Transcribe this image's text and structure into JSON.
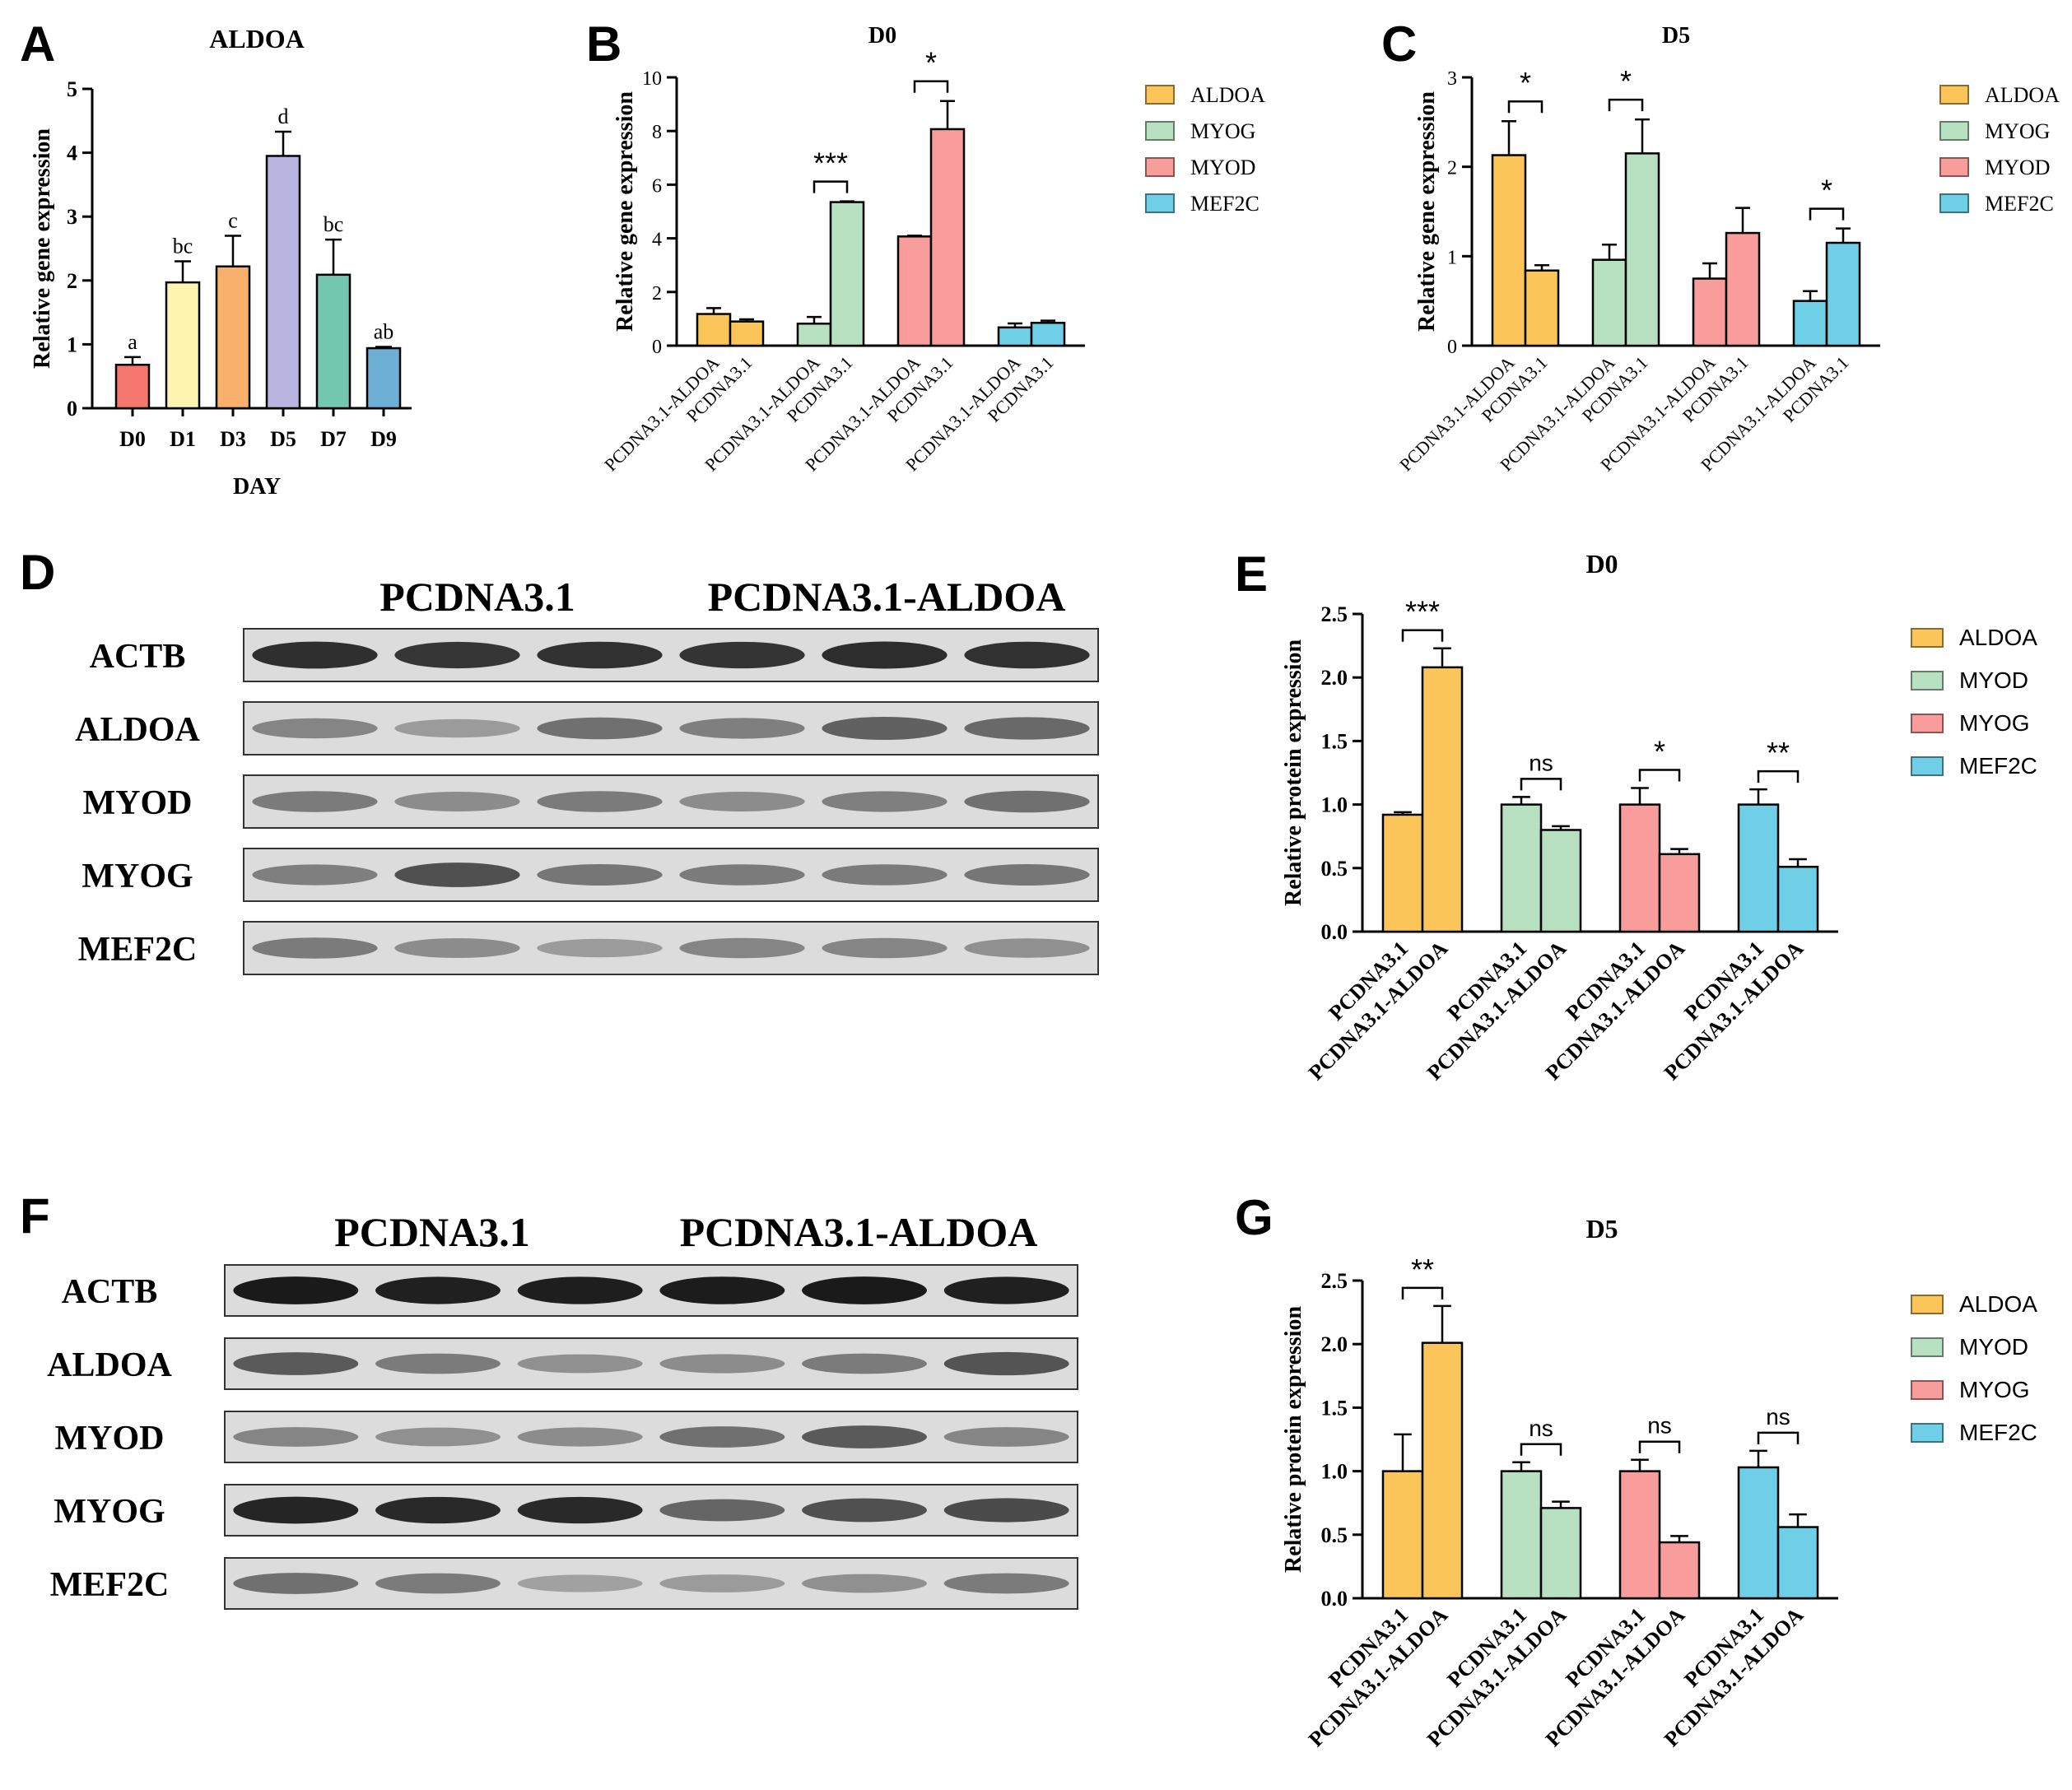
{
  "panels": {
    "A": {
      "letter": "A",
      "chart_data": {
        "type": "bar",
        "title": "ALDOA",
        "xlabel": "DAY",
        "ylabel": "Relative gene expression",
        "ylim": [
          0,
          5
        ],
        "yticks": [
          "0",
          "1",
          "2",
          "3",
          "4",
          "5"
        ],
        "categories": [
          "D0",
          "D1",
          "D3",
          "D5",
          "D7",
          "D9"
        ],
        "values": [
          0.68,
          1.97,
          2.22,
          3.95,
          2.09,
          0.94
        ],
        "errors": [
          0.12,
          0.33,
          0.48,
          0.38,
          0.55,
          0.02
        ],
        "letters": [
          "a",
          "bc",
          "c",
          "d",
          "bc",
          "ab"
        ],
        "colors": [
          "#f4766d",
          "#fdf5b0",
          "#f9b06a",
          "#b8b6e0",
          "#74c7af",
          "#6caed4"
        ],
        "grid": false
      }
    },
    "B": {
      "letter": "B",
      "chart_data": {
        "type": "bar",
        "title": "D0",
        "xlabel": "",
        "ylabel": "Relative gene expression",
        "ylim": [
          0,
          10
        ],
        "yticks": [
          "0",
          "2",
          "4",
          "6",
          "8",
          "10"
        ],
        "categories": [
          "PCDNA3.1-ALDOA",
          "PCDNA3.1"
        ],
        "series": [
          {
            "name": "ALDOA",
            "values": [
              1.18,
              0.9
            ],
            "errors": [
              0.22,
              0.08
            ]
          },
          {
            "name": "MYOG",
            "values": [
              0.82,
              5.35
            ],
            "errors": [
              0.25,
              0.03
            ]
          },
          {
            "name": "MYOD",
            "values": [
              4.07,
              8.07
            ],
            "errors": [
              0.03,
              1.05
            ]
          },
          {
            "name": "MEF2C",
            "values": [
              0.68,
              0.85
            ],
            "errors": [
              0.15,
              0.08
            ]
          }
        ],
        "significance": [
          "",
          "***",
          "*",
          ""
        ],
        "colors": [
          "#fbc559",
          "#b7e1c1",
          "#f89d9b",
          "#6ecfe7"
        ],
        "legend": "right",
        "grid": false
      }
    },
    "C": {
      "letter": "C",
      "chart_data": {
        "type": "bar",
        "title": "D5",
        "xlabel": "",
        "ylabel": "Relative gene expression",
        "ylim": [
          0,
          3
        ],
        "yticks": [
          "0",
          "1",
          "2",
          "3"
        ],
        "categories": [
          "PCDNA3.1-ALDOA",
          "PCDNA3.1"
        ],
        "series": [
          {
            "name": "ALDOA",
            "values": [
              2.13,
              0.84
            ],
            "errors": [
              0.38,
              0.06
            ]
          },
          {
            "name": "MYOG",
            "values": [
              0.96,
              2.15
            ],
            "errors": [
              0.17,
              0.38
            ]
          },
          {
            "name": "MYOD",
            "values": [
              0.75,
              1.26
            ],
            "errors": [
              0.17,
              0.28
            ]
          },
          {
            "name": "MEF2C",
            "values": [
              0.5,
              1.15
            ],
            "errors": [
              0.11,
              0.16
            ]
          }
        ],
        "significance": [
          "*",
          "*",
          "",
          "*"
        ],
        "colors": [
          "#fbc559",
          "#b7e1c1",
          "#f89d9b",
          "#6ecfe7"
        ],
        "legend": "right",
        "grid": false
      }
    },
    "D": {
      "letter": "D",
      "group_labels": [
        "PCDNA3.1",
        "PCDNA3.1-ALDOA"
      ],
      "rows": [
        {
          "label": "ACTB",
          "darkness": [
            0.85,
            0.82,
            0.84,
            0.83,
            0.86,
            0.84
          ]
        },
        {
          "label": "ALDOA",
          "darkness": [
            0.45,
            0.35,
            0.55,
            0.48,
            0.62,
            0.58
          ]
        },
        {
          "label": "MYOD",
          "darkness": [
            0.5,
            0.42,
            0.5,
            0.42,
            0.48,
            0.55
          ]
        },
        {
          "label": "MYOG",
          "darkness": [
            0.48,
            0.7,
            0.52,
            0.5,
            0.5,
            0.52
          ]
        },
        {
          "label": "MEF2C",
          "darkness": [
            0.5,
            0.42,
            0.35,
            0.45,
            0.45,
            0.4
          ]
        }
      ]
    },
    "E": {
      "letter": "E",
      "chart_data": {
        "type": "bar",
        "title": "D0",
        "xlabel": "",
        "ylabel": "Relative protein expression",
        "ylim": [
          0,
          2.5
        ],
        "yticks": [
          "0.0",
          "0.5",
          "1.0",
          "1.5",
          "2.0",
          "2.5"
        ],
        "categories": [
          "PCDNA3.1",
          "PCDNA3.1-ALDOA"
        ],
        "series": [
          {
            "name": "ALDOA",
            "values": [
              0.92,
              2.08
            ],
            "errors": [
              0.02,
              0.15
            ]
          },
          {
            "name": "MYOD",
            "values": [
              1.0,
              0.8
            ],
            "errors": [
              0.06,
              0.03
            ]
          },
          {
            "name": "MYOG",
            "values": [
              1.0,
              0.61
            ],
            "errors": [
              0.13,
              0.04
            ]
          },
          {
            "name": "MEF2C",
            "values": [
              1.0,
              0.51
            ],
            "errors": [
              0.12,
              0.06
            ]
          }
        ],
        "significance": [
          "***",
          "ns",
          "*",
          "**"
        ],
        "colors": [
          "#fbc559",
          "#b7e1c1",
          "#f89d9b",
          "#6ecfe7"
        ],
        "legend": "right",
        "grid": false
      }
    },
    "F": {
      "letter": "F",
      "group_labels": [
        "PCDNA3.1",
        "PCDNA3.1-ALDOA"
      ],
      "rows": [
        {
          "label": "ACTB",
          "darkness": [
            0.95,
            0.92,
            0.93,
            0.94,
            0.95,
            0.92
          ]
        },
        {
          "label": "ALDOA",
          "darkness": [
            0.65,
            0.5,
            0.4,
            0.42,
            0.5,
            0.68
          ]
        },
        {
          "label": "MYOD",
          "darkness": [
            0.45,
            0.4,
            0.42,
            0.55,
            0.65,
            0.45
          ]
        },
        {
          "label": "MYOG",
          "darkness": [
            0.9,
            0.88,
            0.88,
            0.6,
            0.7,
            0.72
          ]
        },
        {
          "label": "MEF2C",
          "darkness": [
            0.55,
            0.5,
            0.32,
            0.35,
            0.4,
            0.5
          ]
        }
      ]
    },
    "G": {
      "letter": "G",
      "chart_data": {
        "type": "bar",
        "title": "D5",
        "xlabel": "",
        "ylabel": "Relative protein expression",
        "ylim": [
          0,
          2.5
        ],
        "yticks": [
          "0.0",
          "0.5",
          "1.0",
          "1.5",
          "2.0",
          "2.5"
        ],
        "categories": [
          "PCDNA3.1",
          "PCDNA3.1-ALDOA"
        ],
        "series": [
          {
            "name": "ALDOA",
            "values": [
              1.0,
              2.01
            ],
            "errors": [
              0.29,
              0.29
            ]
          },
          {
            "name": "MYOD",
            "values": [
              1.0,
              0.71
            ],
            "errors": [
              0.07,
              0.05
            ]
          },
          {
            "name": "MYOG",
            "values": [
              1.0,
              0.44
            ],
            "errors": [
              0.09,
              0.05
            ]
          },
          {
            "name": "MEF2C",
            "values": [
              1.03,
              0.56
            ],
            "errors": [
              0.13,
              0.1
            ]
          }
        ],
        "significance": [
          "**",
          "ns",
          "ns",
          "ns"
        ],
        "colors": [
          "#fbc559",
          "#b7e1c1",
          "#f89d9b",
          "#6ecfe7"
        ],
        "legend": "right",
        "grid": false
      }
    }
  }
}
